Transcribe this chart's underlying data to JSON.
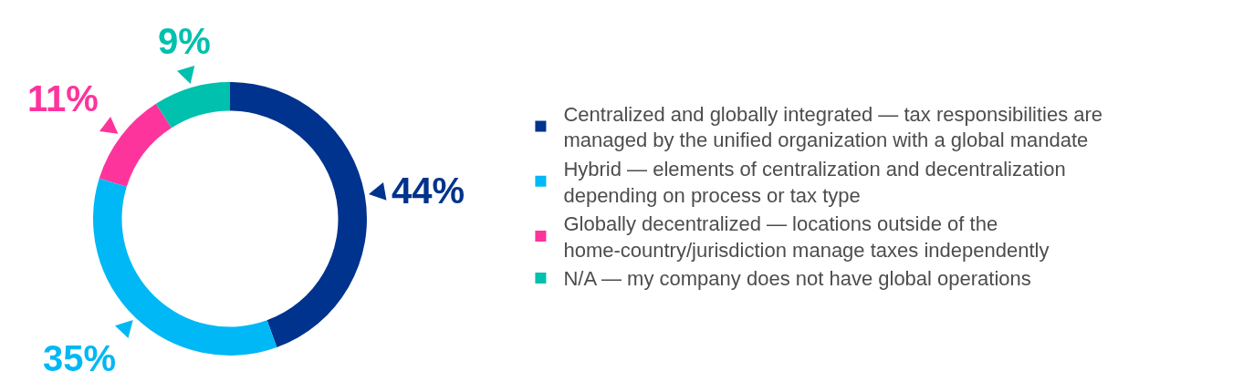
{
  "chart_data": {
    "type": "donut",
    "categories": [
      "Centralized and globally integrated — tax responsibilities are managed by the unified organization with a global mandate",
      "Hybrid — elements of centralization and decentralization depending on process or tax type",
      "Globally decentralized — locations outside of the home-country/jurisdiction manage taxes independently",
      "N/A — my company does not have global operations"
    ],
    "values": [
      44,
      35,
      11,
      9
    ],
    "value_labels": [
      "44%",
      "35%",
      "11%",
      "9%"
    ],
    "colors": [
      "#00338d",
      "#00b8f5",
      "#fd349c",
      "#00c0ae"
    ],
    "legend": "right"
  }
}
